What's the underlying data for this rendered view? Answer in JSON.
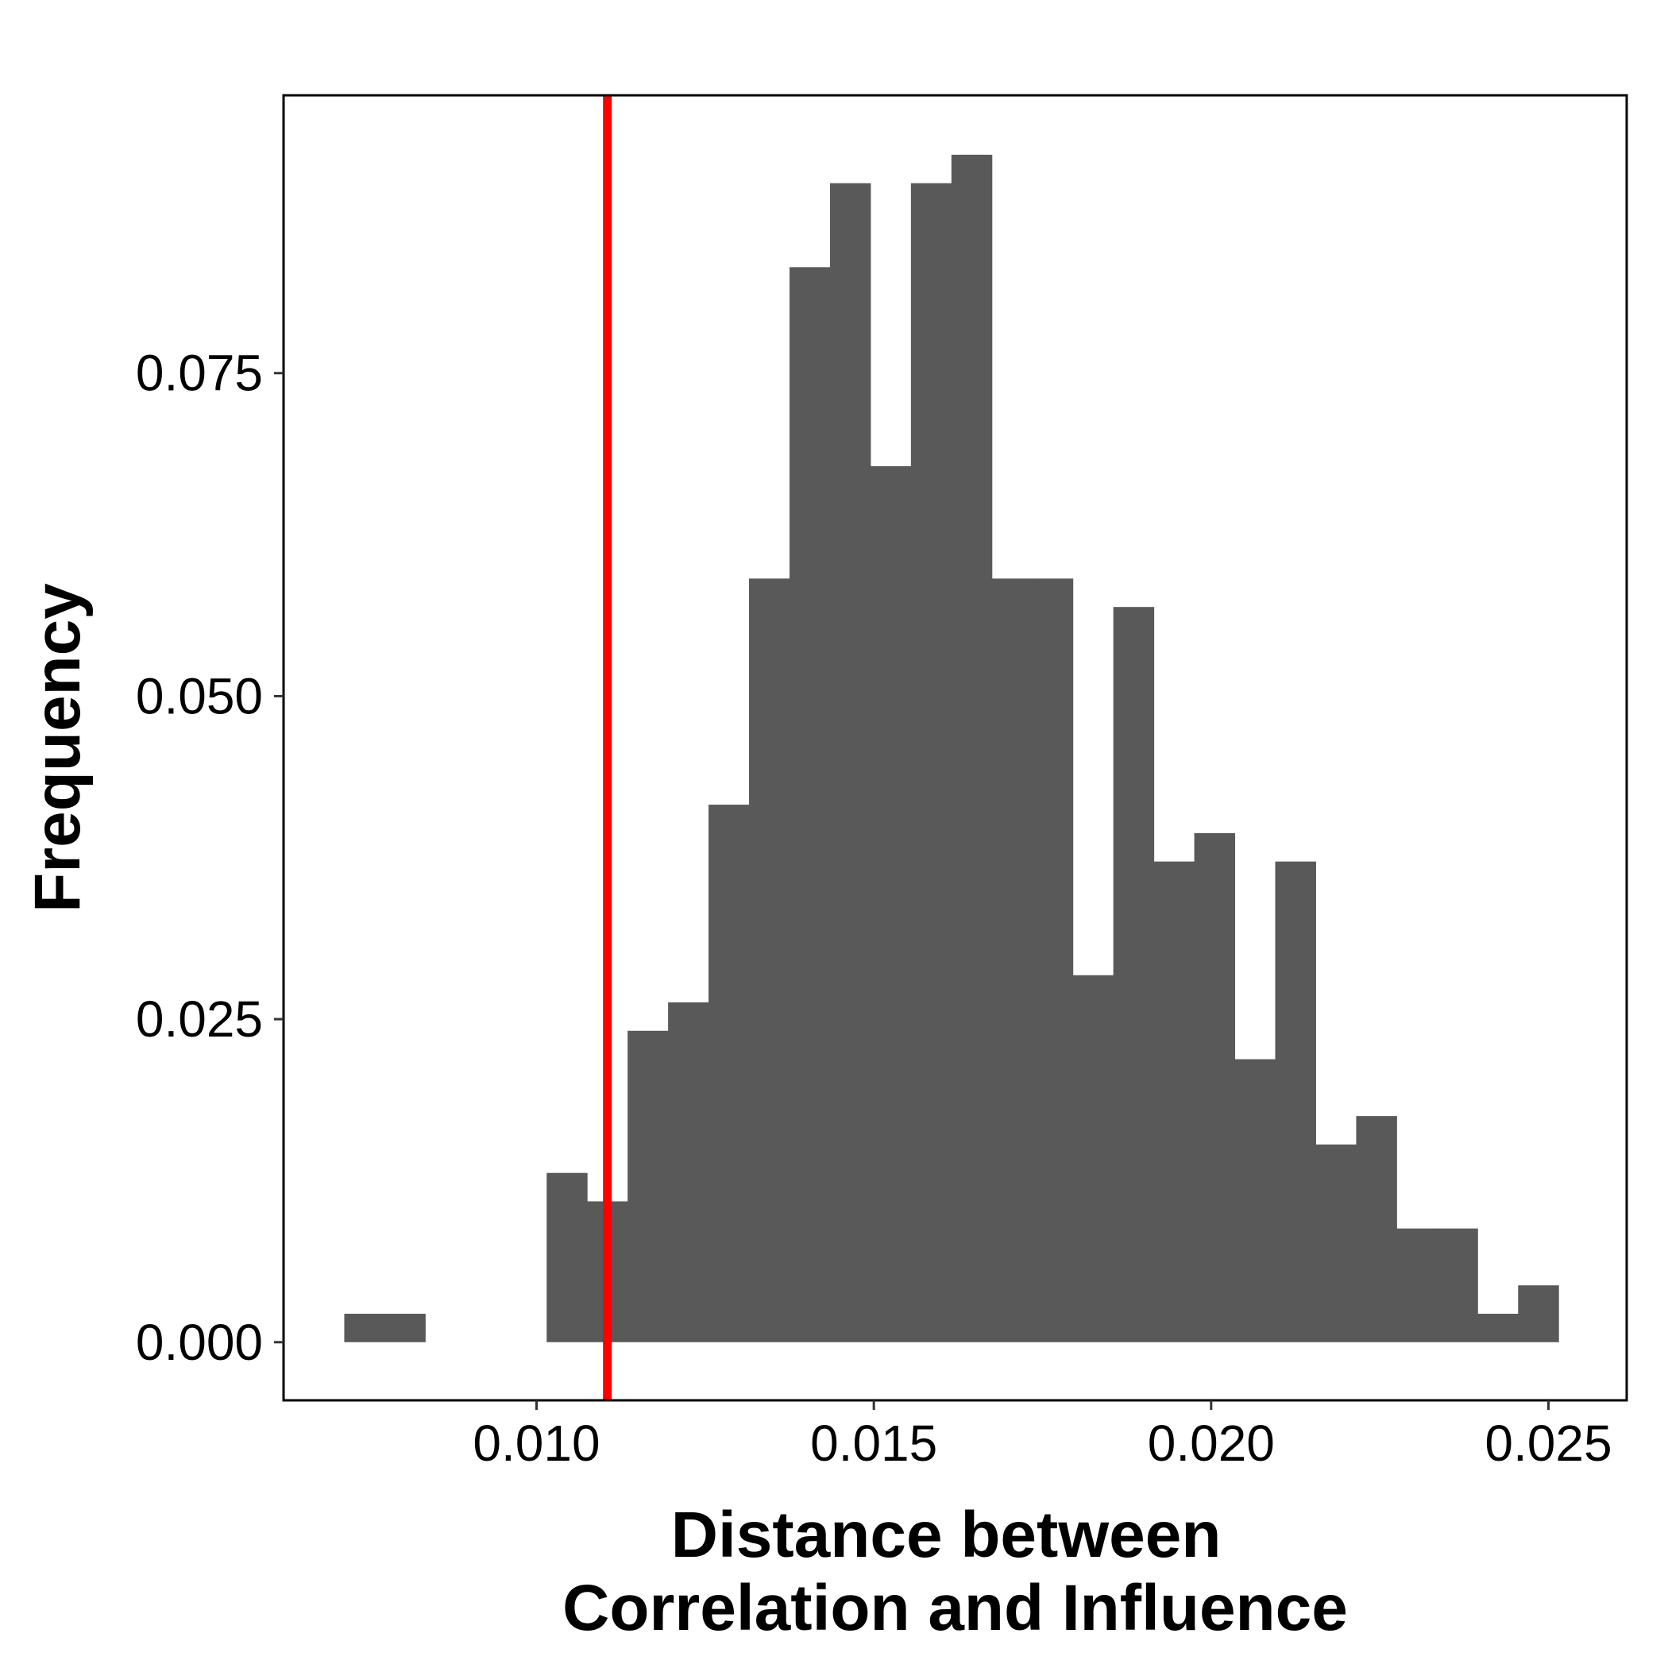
{
  "chart_data": {
    "type": "bar",
    "subtype": "histogram",
    "xlabel_lines": [
      "Distance between",
      "Correlation and Influence"
    ],
    "ylabel": "Frequency",
    "xlim": [
      0.00625,
      0.02616
    ],
    "ylim": [
      -0.0045,
      0.0965
    ],
    "x_ticks": [
      {
        "value": 0.01,
        "label": "0.010"
      },
      {
        "value": 0.015,
        "label": "0.015"
      },
      {
        "value": 0.02,
        "label": "0.020"
      },
      {
        "value": 0.025,
        "label": "0.025"
      }
    ],
    "y_ticks": [
      {
        "value": 0.0,
        "label": "0.000"
      },
      {
        "value": 0.025,
        "label": "0.025"
      },
      {
        "value": 0.05,
        "label": "0.050"
      },
      {
        "value": 0.075,
        "label": "0.075"
      }
    ],
    "bins": [
      {
        "x0": 0.00715,
        "x1": 0.00775,
        "y": 0.0022
      },
      {
        "x0": 0.00775,
        "x1": 0.00835,
        "y": 0.0022
      },
      {
        "x0": 0.00835,
        "x1": 0.00895,
        "y": 0.0
      },
      {
        "x0": 0.00895,
        "x1": 0.00955,
        "y": 0.0
      },
      {
        "x0": 0.00955,
        "x1": 0.01015,
        "y": 0.0
      },
      {
        "x0": 0.01015,
        "x1": 0.01075,
        "y": 0.0131
      },
      {
        "x0": 0.01075,
        "x1": 0.01135,
        "y": 0.0109
      },
      {
        "x0": 0.01135,
        "x1": 0.01195,
        "y": 0.0241
      },
      {
        "x0": 0.01195,
        "x1": 0.01255,
        "y": 0.0263
      },
      {
        "x0": 0.01255,
        "x1": 0.01315,
        "y": 0.0416
      },
      {
        "x0": 0.01315,
        "x1": 0.01375,
        "y": 0.0591
      },
      {
        "x0": 0.01375,
        "x1": 0.01435,
        "y": 0.0832
      },
      {
        "x0": 0.01435,
        "x1": 0.01495,
        "y": 0.0897
      },
      {
        "x0": 0.01495,
        "x1": 0.01555,
        "y": 0.0678
      },
      {
        "x0": 0.01555,
        "x1": 0.01615,
        "y": 0.0897
      },
      {
        "x0": 0.01615,
        "x1": 0.01675,
        "y": 0.0919
      },
      {
        "x0": 0.01675,
        "x1": 0.01735,
        "y": 0.0591
      },
      {
        "x0": 0.01735,
        "x1": 0.01795,
        "y": 0.0591
      },
      {
        "x0": 0.01795,
        "x1": 0.01855,
        "y": 0.0284
      },
      {
        "x0": 0.01855,
        "x1": 0.01915,
        "y": 0.0569
      },
      {
        "x0": 0.01915,
        "x1": 0.01975,
        "y": 0.0372
      },
      {
        "x0": 0.01975,
        "x1": 0.02035,
        "y": 0.0394
      },
      {
        "x0": 0.02035,
        "x1": 0.02095,
        "y": 0.0219
      },
      {
        "x0": 0.02095,
        "x1": 0.02155,
        "y": 0.0372
      },
      {
        "x0": 0.02155,
        "x1": 0.02215,
        "y": 0.0153
      },
      {
        "x0": 0.02215,
        "x1": 0.02275,
        "y": 0.0175
      },
      {
        "x0": 0.02275,
        "x1": 0.02335,
        "y": 0.0088
      },
      {
        "x0": 0.02335,
        "x1": 0.02395,
        "y": 0.0088
      },
      {
        "x0": 0.02395,
        "x1": 0.02455,
        "y": 0.0022
      },
      {
        "x0": 0.02455,
        "x1": 0.02515,
        "y": 0.0044
      }
    ],
    "reference_line": {
      "x": 0.01105,
      "color": "#ff0000"
    },
    "bar_color": "#595959",
    "grid": false,
    "legend": "none"
  }
}
